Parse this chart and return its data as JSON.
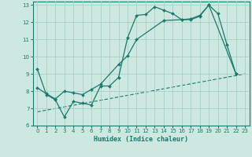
{
  "xlabel": "Humidex (Indice chaleur)",
  "background_color": "#cce8e0",
  "grid_color": "#a8cfc7",
  "line_color": "#1a7a6e",
  "xlim": [
    -0.5,
    23.5
  ],
  "ylim": [
    6,
    13.2
  ],
  "yticks": [
    6,
    7,
    8,
    9,
    10,
    11,
    12,
    13
  ],
  "xticks": [
    0,
    1,
    2,
    3,
    4,
    5,
    6,
    7,
    8,
    9,
    10,
    11,
    12,
    13,
    14,
    15,
    16,
    17,
    18,
    19,
    20,
    21,
    22,
    23
  ],
  "line1_x": [
    0,
    1,
    2,
    3,
    4,
    5,
    6,
    7,
    8,
    9,
    10,
    11,
    12,
    13,
    14,
    15,
    16,
    17,
    18,
    19,
    20,
    21,
    22
  ],
  "line1_y": [
    9.3,
    7.8,
    7.5,
    6.5,
    7.4,
    7.3,
    7.2,
    8.3,
    8.3,
    8.8,
    11.1,
    12.4,
    12.45,
    12.9,
    12.7,
    12.5,
    12.15,
    12.15,
    12.35,
    13.0,
    12.5,
    10.7,
    9.0
  ],
  "line2_x": [
    0,
    1,
    2,
    3,
    4,
    5,
    6,
    7,
    9,
    10,
    11,
    14,
    16,
    17,
    18,
    19,
    22
  ],
  "line2_y": [
    8.2,
    7.85,
    7.55,
    8.0,
    7.9,
    7.8,
    8.1,
    8.4,
    9.55,
    10.05,
    11.0,
    12.1,
    12.15,
    12.2,
    12.4,
    13.0,
    9.0
  ],
  "line3_x": [
    0,
    23
  ],
  "line3_y": [
    6.8,
    9.0
  ]
}
